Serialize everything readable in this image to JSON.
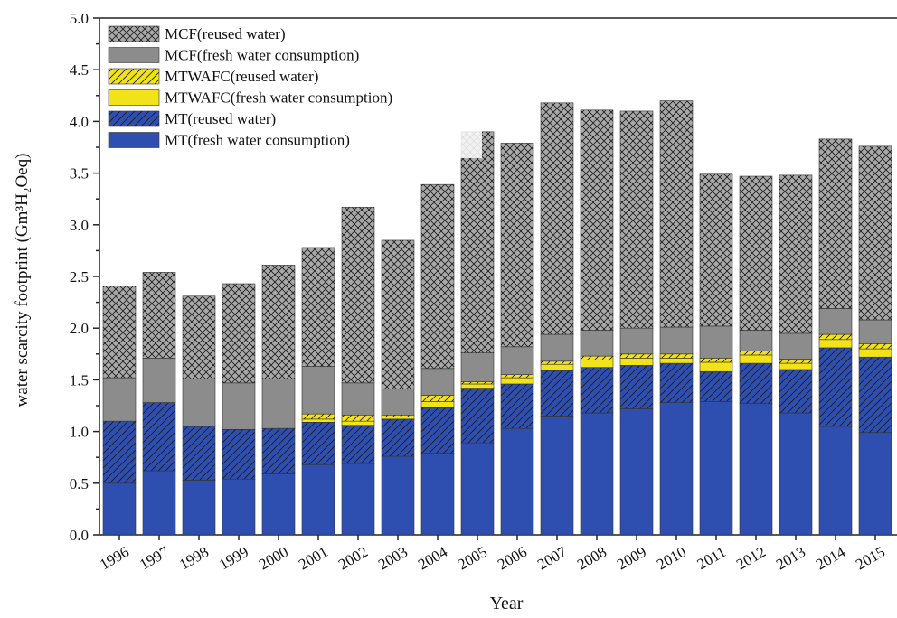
{
  "chart_data": {
    "type": "stacked_bar",
    "x_label": "Year",
    "y_label": "water scarcity footprint (Gm³H₂Oeq)",
    "categories": [
      "1996",
      "1997",
      "1998",
      "1999",
      "2000",
      "2001",
      "2002",
      "2003",
      "2004",
      "2005",
      "2006",
      "2007",
      "2008",
      "2009",
      "2010",
      "2011",
      "2012",
      "2013",
      "2014",
      "2015"
    ],
    "ylim": [
      0,
      5
    ],
    "yticks": [
      {
        "value": 0,
        "label": "0.0"
      },
      0.5,
      {
        "value": 1,
        "label": "1.0"
      },
      1.5,
      {
        "value": 2,
        "label": "2.0"
      },
      2.5,
      {
        "value": 3,
        "label": "3.0"
      },
      3.5,
      {
        "value": 4,
        "label": "4.0"
      },
      4.5,
      {
        "value": 5,
        "label": "5.0"
      }
    ],
    "legend": "upper left",
    "series": [
      {
        "name": "MT(fresh water consumption)",
        "color": "#2e4fb0",
        "pattern": "none",
        "values": [
          0.5,
          0.62,
          0.53,
          0.54,
          0.59,
          0.68,
          0.69,
          0.76,
          0.79,
          0.89,
          1.03,
          1.15,
          1.18,
          1.22,
          1.28,
          1.29,
          1.27,
          1.18,
          1.05,
          0.99
        ]
      },
      {
        "name": "MT(reused water)",
        "color": "#2e4fb0",
        "pattern": "diagonal",
        "values": [
          0.6,
          0.66,
          0.52,
          0.48,
          0.44,
          0.41,
          0.37,
          0.36,
          0.44,
          0.53,
          0.43,
          0.44,
          0.44,
          0.42,
          0.38,
          0.29,
          0.39,
          0.42,
          0.76,
          0.73
        ]
      },
      {
        "name": "MTWAFC(fresh water consumption)",
        "color": "#f2e21a",
        "pattern": "none",
        "values": [
          0,
          0,
          0,
          0,
          0,
          0.03,
          0.04,
          0.02,
          0.06,
          0.04,
          0.06,
          0.06,
          0.07,
          0.07,
          0.05,
          0.09,
          0.08,
          0.06,
          0.08,
          0.08
        ]
      },
      {
        "name": "MTWAFC(reused water)",
        "color": "#f2e21a",
        "pattern": "diagonal",
        "values": [
          0,
          0,
          0,
          0,
          0,
          0.05,
          0.06,
          0.02,
          0.06,
          0.02,
          0.03,
          0.03,
          0.04,
          0.04,
          0.04,
          0.04,
          0.04,
          0.04,
          0.05,
          0.05
        ]
      },
      {
        "name": "MCF(fresh water consumption)",
        "color": "#8c8c8c",
        "pattern": "none",
        "values": [
          0.42,
          0.43,
          0.46,
          0.45,
          0.48,
          0.46,
          0.31,
          0.25,
          0.26,
          0.28,
          0.27,
          0.26,
          0.25,
          0.25,
          0.26,
          0.31,
          0.2,
          0.25,
          0.25,
          0.23
        ]
      },
      {
        "name": "MCF(reused water)",
        "color": "#a8a8a8",
        "pattern": "crosshatch",
        "values": [
          0.89,
          0.83,
          0.8,
          0.96,
          1.1,
          1.15,
          1.7,
          1.44,
          1.78,
          2.14,
          1.97,
          2.24,
          2.13,
          2.1,
          2.19,
          1.47,
          1.49,
          1.53,
          1.64,
          1.68
        ]
      }
    ]
  }
}
